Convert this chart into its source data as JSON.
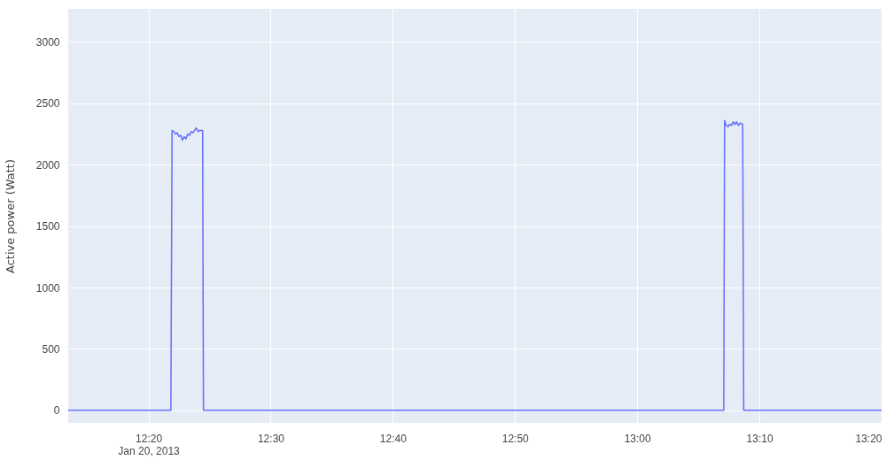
{
  "chart_data": {
    "type": "line",
    "ylabel": "Active power (Watt)",
    "x": [
      "2013-01-20T12:13:26",
      "2013-01-20T12:21:50",
      "2013-01-20T12:21:56",
      "2013-01-20T12:22:05",
      "2013-01-20T12:22:13",
      "2013-01-20T12:22:22",
      "2013-01-20T12:22:30",
      "2013-01-20T12:22:39",
      "2013-01-20T12:22:47",
      "2013-01-20T12:22:56",
      "2013-01-20T12:23:04",
      "2013-01-20T12:23:13",
      "2013-01-20T12:23:21",
      "2013-01-20T12:23:30",
      "2013-01-20T12:23:38",
      "2013-01-20T12:23:47",
      "2013-01-20T12:23:55",
      "2013-01-20T12:24:04",
      "2013-01-20T12:24:12",
      "2013-01-20T12:24:26",
      "2013-01-20T12:24:30",
      "2013-01-20T13:07:05",
      "2013-01-20T13:07:09",
      "2013-01-20T13:07:17",
      "2013-01-20T13:07:26",
      "2013-01-20T13:07:34",
      "2013-01-20T13:07:43",
      "2013-01-20T13:07:51",
      "2013-01-20T13:08:00",
      "2013-01-20T13:08:08",
      "2013-01-20T13:08:17",
      "2013-01-20T13:08:25",
      "2013-01-20T13:08:38",
      "2013-01-20T13:08:43",
      "2013-01-20T13:20:00"
    ],
    "series": [
      {
        "color": "#636efa",
        "values": [
          0,
          0,
          2280,
          2270,
          2250,
          2260,
          2230,
          2240,
          2200,
          2230,
          2210,
          2250,
          2240,
          2270,
          2260,
          2280,
          2300,
          2270,
          2280,
          2280,
          0,
          0,
          2360,
          2320,
          2310,
          2330,
          2320,
          2350,
          2330,
          2350,
          2320,
          2340,
          2330,
          0,
          0
        ]
      }
    ],
    "xlim": [
      "2013-01-20T12:13:26",
      "2013-01-20T13:20:00"
    ],
    "xticks": [
      {
        "value": "2013-01-20T12:20",
        "label": "12:20\nJan 20, 2013"
      },
      {
        "value": "2013-01-20T12:30",
        "label": "12:30"
      },
      {
        "value": "2013-01-20T12:40",
        "label": "12:40"
      },
      {
        "value": "2013-01-20T12:50",
        "label": "12:50"
      },
      {
        "value": "2013-01-20T13:00",
        "label": "13:00"
      },
      {
        "value": "2013-01-20T13:10",
        "label": "13:10"
      },
      {
        "value": "2013-01-20T13:20",
        "label": "13:20"
      }
    ],
    "ylim": [
      -102,
      3270
    ],
    "yticks": [
      0,
      500,
      1000,
      1500,
      2000,
      2500,
      3000
    ],
    "grid": true,
    "marker": "none",
    "line_style": "solid"
  }
}
